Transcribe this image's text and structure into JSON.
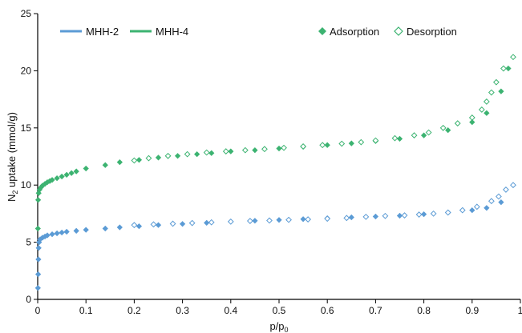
{
  "chart_data": {
    "type": "scatter",
    "xlabel": "p/p0",
    "ylabel": "N2 uptake (mmol/g)",
    "xlim": [
      0,
      1
    ],
    "ylim": [
      0,
      25
    ],
    "x_ticks": [
      0,
      0.1,
      0.2,
      0.3,
      0.4,
      0.5,
      0.6,
      0.7,
      0.8,
      0.9,
      1
    ],
    "x_tick_labels": [
      "0",
      "0.1",
      "0.2",
      "0.3",
      "0.4",
      "0.5",
      "0.6",
      "0.7",
      "0.8",
      "0.9",
      "1"
    ],
    "y_ticks": [
      0,
      5,
      10,
      15,
      20,
      25
    ],
    "grid": false,
    "legend": {
      "placement": "top",
      "series_entries": [
        {
          "label": "MHH-2",
          "color": "#5b9bd5"
        },
        {
          "label": "MHH-4",
          "color": "#3cb371"
        }
      ],
      "marker_entries": [
        {
          "label": "Adsorption",
          "style": "filled-diamond"
        },
        {
          "label": "Desorption",
          "style": "open-diamond"
        }
      ]
    },
    "series": [
      {
        "name": "MHH-2",
        "branch": "Adsorption",
        "color": "#5b9bd5",
        "marker": "filled-diamond",
        "points": [
          [
            0.0005,
            1.0
          ],
          [
            0.001,
            2.2
          ],
          [
            0.0015,
            3.5
          ],
          [
            0.002,
            4.5
          ],
          [
            0.003,
            5.0
          ],
          [
            0.005,
            5.25
          ],
          [
            0.01,
            5.4
          ],
          [
            0.015,
            5.5
          ],
          [
            0.02,
            5.6
          ],
          [
            0.03,
            5.7
          ],
          [
            0.04,
            5.78
          ],
          [
            0.05,
            5.85
          ],
          [
            0.06,
            5.92
          ],
          [
            0.08,
            6.0
          ],
          [
            0.1,
            6.08
          ],
          [
            0.14,
            6.2
          ],
          [
            0.17,
            6.3
          ],
          [
            0.21,
            6.4
          ],
          [
            0.25,
            6.5
          ],
          [
            0.3,
            6.6
          ],
          [
            0.35,
            6.7
          ],
          [
            0.4,
            6.8
          ],
          [
            0.45,
            6.88
          ],
          [
            0.5,
            6.95
          ],
          [
            0.55,
            7.02
          ],
          [
            0.6,
            7.1
          ],
          [
            0.65,
            7.18
          ],
          [
            0.7,
            7.25
          ],
          [
            0.75,
            7.32
          ],
          [
            0.8,
            7.45
          ],
          [
            0.85,
            7.6
          ],
          [
            0.9,
            7.8
          ],
          [
            0.93,
            8.0
          ],
          [
            0.96,
            8.5
          ]
        ]
      },
      {
        "name": "MHH-2",
        "branch": "Desorption",
        "color": "#5b9bd5",
        "marker": "open-diamond",
        "points": [
          [
            0.985,
            10.0
          ],
          [
            0.97,
            9.6
          ],
          [
            0.955,
            9.0
          ],
          [
            0.94,
            8.6
          ],
          [
            0.91,
            8.1
          ],
          [
            0.88,
            7.8
          ],
          [
            0.85,
            7.6
          ],
          [
            0.82,
            7.5
          ],
          [
            0.79,
            7.42
          ],
          [
            0.76,
            7.35
          ],
          [
            0.72,
            7.3
          ],
          [
            0.68,
            7.22
          ],
          [
            0.64,
            7.12
          ],
          [
            0.6,
            7.06
          ],
          [
            0.56,
            7.0
          ],
          [
            0.52,
            6.96
          ],
          [
            0.48,
            6.9
          ],
          [
            0.44,
            6.86
          ],
          [
            0.4,
            6.8
          ],
          [
            0.36,
            6.74
          ],
          [
            0.32,
            6.68
          ],
          [
            0.28,
            6.62
          ],
          [
            0.24,
            6.56
          ],
          [
            0.2,
            6.5
          ]
        ]
      },
      {
        "name": "MHH-4",
        "branch": "Adsorption",
        "color": "#3cb371",
        "marker": "filled-diamond",
        "points": [
          [
            0.0005,
            6.2
          ],
          [
            0.001,
            8.7
          ],
          [
            0.002,
            9.3
          ],
          [
            0.004,
            9.6
          ],
          [
            0.007,
            9.8
          ],
          [
            0.01,
            9.95
          ],
          [
            0.015,
            10.1
          ],
          [
            0.02,
            10.25
          ],
          [
            0.025,
            10.35
          ],
          [
            0.03,
            10.45
          ],
          [
            0.04,
            10.6
          ],
          [
            0.05,
            10.75
          ],
          [
            0.06,
            10.9
          ],
          [
            0.07,
            11.05
          ],
          [
            0.08,
            11.2
          ],
          [
            0.1,
            11.45
          ],
          [
            0.14,
            11.75
          ],
          [
            0.17,
            12.0
          ],
          [
            0.21,
            12.2
          ],
          [
            0.25,
            12.4
          ],
          [
            0.29,
            12.55
          ],
          [
            0.33,
            12.7
          ],
          [
            0.36,
            12.8
          ],
          [
            0.4,
            12.95
          ],
          [
            0.45,
            13.05
          ],
          [
            0.5,
            13.2
          ],
          [
            0.55,
            13.35
          ],
          [
            0.6,
            13.5
          ],
          [
            0.65,
            13.65
          ],
          [
            0.7,
            13.85
          ],
          [
            0.75,
            14.05
          ],
          [
            0.8,
            14.35
          ],
          [
            0.85,
            14.8
          ],
          [
            0.9,
            15.5
          ],
          [
            0.93,
            16.3
          ],
          [
            0.96,
            18.2
          ],
          [
            0.975,
            20.2
          ]
        ]
      },
      {
        "name": "MHH-4",
        "branch": "Desorption",
        "color": "#3cb371",
        "marker": "open-diamond",
        "points": [
          [
            0.985,
            21.2
          ],
          [
            0.965,
            20.2
          ],
          [
            0.95,
            19.0
          ],
          [
            0.94,
            18.1
          ],
          [
            0.93,
            17.3
          ],
          [
            0.92,
            16.6
          ],
          [
            0.9,
            15.9
          ],
          [
            0.87,
            15.4
          ],
          [
            0.84,
            15.0
          ],
          [
            0.81,
            14.6
          ],
          [
            0.78,
            14.35
          ],
          [
            0.74,
            14.1
          ],
          [
            0.7,
            13.9
          ],
          [
            0.67,
            13.75
          ],
          [
            0.63,
            13.62
          ],
          [
            0.59,
            13.5
          ],
          [
            0.55,
            13.38
          ],
          [
            0.51,
            13.26
          ],
          [
            0.47,
            13.15
          ],
          [
            0.43,
            13.05
          ],
          [
            0.39,
            12.95
          ],
          [
            0.35,
            12.85
          ],
          [
            0.31,
            12.7
          ],
          [
            0.27,
            12.55
          ],
          [
            0.23,
            12.35
          ],
          [
            0.2,
            12.15
          ]
        ]
      }
    ]
  }
}
